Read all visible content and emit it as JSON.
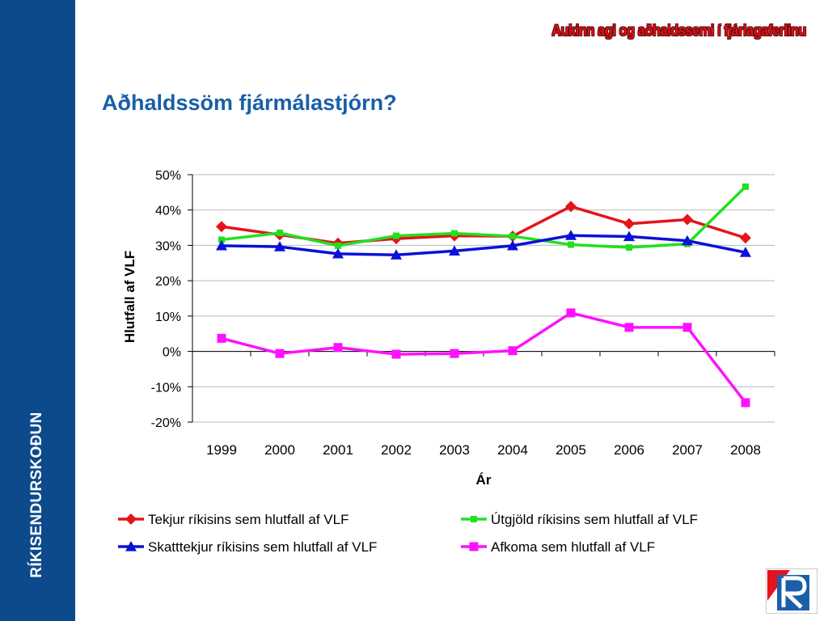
{
  "sidebar": {
    "label": "RÍKISENDURSKOÐUN"
  },
  "header": {
    "tag": "Aukinn agi og aðhaldssemi í fjárlagaferlinu"
  },
  "slide": {
    "title": "Aðhaldssöm fjármálastjórn?"
  },
  "colors": {
    "sidebar": "#0d4a8c",
    "title": "#1a5fa8",
    "tag": "#e0101a"
  },
  "chart_data": {
    "type": "line",
    "title": "",
    "xlabel": "Ár",
    "ylabel": "Hlutfall af VLF",
    "ylim": [
      -20,
      50
    ],
    "yticks": [
      "50%",
      "40%",
      "30%",
      "20%",
      "10%",
      "0%",
      "-10%",
      "-20%"
    ],
    "ytick_values": [
      50,
      40,
      30,
      20,
      10,
      0,
      -10,
      -20
    ],
    "grid": true,
    "legend_position": "bottom",
    "categories": [
      "1999",
      "2000",
      "2001",
      "2002",
      "2003",
      "2004",
      "2005",
      "2006",
      "2007",
      "2008"
    ],
    "series": [
      {
        "name": "Tekjur ríkisins sem hlutfall af VLF",
        "color": "#e4141b",
        "marker": "diamond",
        "values": [
          35.3,
          33.0,
          30.6,
          31.9,
          32.7,
          32.6,
          41.0,
          36.1,
          37.3,
          32.1
        ]
      },
      {
        "name": "Útgjöld ríkisins sem hlutfall af VLF",
        "color": "#22e01e",
        "marker": "square",
        "values": [
          31.6,
          33.5,
          29.9,
          32.7,
          33.4,
          32.6,
          30.2,
          29.4,
          30.4,
          46.6
        ]
      },
      {
        "name": "Skatttekjur ríkisins sem hlutfall af VLF",
        "color": "#0a10d8",
        "marker": "triangle",
        "values": [
          29.9,
          29.6,
          27.6,
          27.3,
          28.4,
          29.9,
          32.8,
          32.5,
          31.3,
          28.0
        ]
      },
      {
        "name": "Afkoma sem hlutfall af VLF",
        "color": "#ff10ff",
        "marker": "square",
        "values": [
          3.7,
          -0.6,
          1.1,
          -0.8,
          -0.6,
          0.2,
          10.9,
          6.8,
          6.8,
          -14.5
        ]
      }
    ]
  }
}
